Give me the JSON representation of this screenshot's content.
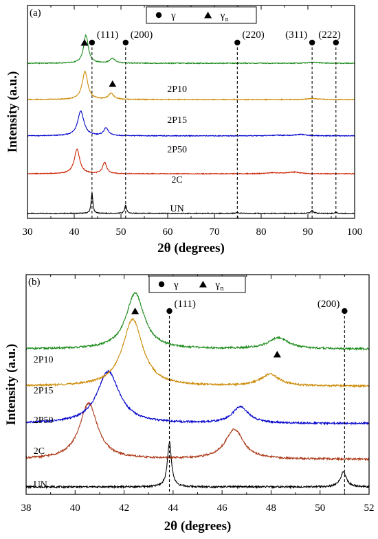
{
  "chart_data": [
    {
      "panel_label": "(a)",
      "type": "line",
      "xlabel": "2θ (degrees)",
      "ylabel": "Intensity (a.u.)",
      "xlim": [
        30,
        100
      ],
      "xticks": [
        30,
        40,
        50,
        60,
        70,
        80,
        90,
        100
      ],
      "legend": [
        {
          "symbol": "circle",
          "label": "γ"
        },
        {
          "symbol": "triangle",
          "label": "γ",
          "subscript": "n"
        }
      ],
      "legend_position": "top-center",
      "reference_lines": [
        {
          "x": 43.8,
          "label": "(111)"
        },
        {
          "x": 51.0,
          "label": "(200)"
        },
        {
          "x": 74.9,
          "label": "(220)"
        },
        {
          "x": 90.9,
          "label": "(311)"
        },
        {
          "x": 96.0,
          "label": "(222)"
        }
      ],
      "peak_markers": [
        {
          "x": 42.2,
          "symbol": "triangle"
        },
        {
          "x": 48.2,
          "symbol": "triangle"
        }
      ],
      "series": [
        {
          "name": "UN",
          "color": "#000000",
          "baseline": 0.0,
          "peaks": [
            [
              43.8,
              0.62,
              0.22
            ],
            [
              51.0,
              0.25,
              0.25
            ],
            [
              74.9,
              0.03,
              0.3
            ],
            [
              90.9,
              0.09,
              0.35
            ],
            [
              96.0,
              0.03,
              0.3
            ]
          ]
        },
        {
          "name": "2C",
          "color": "#cc2200",
          "baseline": 1.2,
          "peaks": [
            [
              40.6,
              0.75,
              0.7
            ],
            [
              46.5,
              0.35,
              0.5
            ],
            [
              82.5,
              0.03,
              1.5
            ],
            [
              87.0,
              0.05,
              1.5
            ]
          ]
        },
        {
          "name": "2P50",
          "color": "#0000cc",
          "baseline": 2.35,
          "peaks": [
            [
              41.4,
              0.75,
              0.8
            ],
            [
              46.8,
              0.23,
              0.6
            ],
            [
              83.5,
              0.02,
              1.5
            ],
            [
              88.5,
              0.04,
              1.5
            ]
          ]
        },
        {
          "name": "2P15",
          "color": "#cc8800",
          "baseline": 3.45,
          "peaks": [
            [
              42.3,
              0.85,
              0.7
            ],
            [
              47.9,
              0.18,
              0.7
            ],
            [
              91.0,
              0.03,
              1.2
            ]
          ]
        },
        {
          "name": "2P10",
          "color": "#1a8a1a",
          "baseline": 4.55,
          "peaks": [
            [
              42.5,
              0.85,
              0.6
            ],
            [
              48.2,
              0.14,
              0.7
            ],
            [
              91.0,
              0.03,
              1.2
            ]
          ]
        }
      ],
      "series_label_x": 62,
      "ylim": [
        -0.15,
        6.3
      ]
    },
    {
      "panel_label": "(b)",
      "type": "line",
      "xlabel": "2θ (degrees)",
      "ylabel": "Intensity (a.u.)",
      "xlim": [
        38,
        52
      ],
      "xticks": [
        38,
        40,
        42,
        44,
        46,
        48,
        50,
        52
      ],
      "legend": [
        {
          "symbol": "circle",
          "label": "γ"
        },
        {
          "symbol": "triangle",
          "label": "γ",
          "subscript": "n"
        }
      ],
      "legend_position": "top-center",
      "reference_lines": [
        {
          "x": 43.85,
          "label": "(111)"
        },
        {
          "x": 51.0,
          "label": "(200)"
        }
      ],
      "peak_markers": [
        {
          "x": 42.45,
          "symbol": "triangle"
        },
        {
          "x": 48.25,
          "symbol": "triangle"
        }
      ],
      "series": [
        {
          "name": "UN",
          "color": "#000000",
          "baseline": 0.0,
          "peaks": [
            [
              43.85,
              0.6,
              0.1
            ],
            [
              50.95,
              0.2,
              0.15
            ]
          ]
        },
        {
          "name": "2C",
          "color": "#aa3311",
          "baseline": 0.37,
          "peaks": [
            [
              40.55,
              0.75,
              0.45
            ],
            [
              46.5,
              0.4,
              0.45
            ]
          ]
        },
        {
          "name": "2P50",
          "color": "#0000cc",
          "baseline": 0.85,
          "peaks": [
            [
              41.35,
              0.7,
              0.55
            ],
            [
              46.75,
              0.22,
              0.4
            ]
          ]
        },
        {
          "name": "2P15",
          "color": "#cc8800",
          "baseline": 1.35,
          "peaks": [
            [
              42.35,
              0.9,
              0.5
            ],
            [
              47.95,
              0.16,
              0.45
            ]
          ]
        },
        {
          "name": "2P10",
          "color": "#1a8a1a",
          "baseline": 1.85,
          "peaks": [
            [
              42.45,
              0.75,
              0.45
            ],
            [
              48.3,
              0.15,
              0.5
            ]
          ]
        }
      ],
      "series_label_x": 38.3,
      "ylim": [
        -0.1,
        2.85
      ]
    }
  ]
}
